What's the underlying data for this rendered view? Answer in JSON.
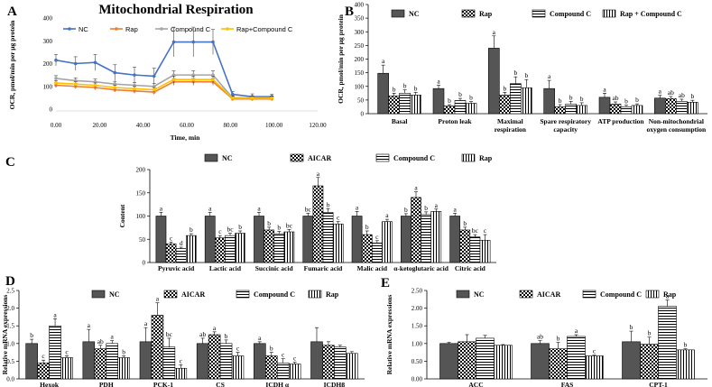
{
  "panels": {
    "A": {
      "label": "A",
      "chart_data": {
        "type": "line",
        "title": "Mitochondrial Respiration",
        "xlabel": "Time, min",
        "ylabel": "OCR, pmol/min per μg protein",
        "xlim": [
          0,
          120
        ],
        "ylim": [
          0,
          400
        ],
        "xticks": [
          "0.00",
          "20.00",
          "40.00",
          "60.00",
          "80.00",
          "100.00",
          "120.00"
        ],
        "yticks": [
          "0",
          "100",
          "200",
          "300",
          "400"
        ],
        "x": [
          0,
          9,
          18,
          27,
          36,
          45,
          54,
          63,
          72,
          81,
          90,
          99
        ],
        "series": [
          {
            "name": "NC",
            "color": "#4472C4",
            "values": [
              215,
              200,
              205,
              160,
              150,
              145,
              295,
              295,
              295,
              65,
              55,
              55
            ],
            "errors": [
              25,
              30,
              35,
              35,
              35,
              35,
              65,
              65,
              55,
              12,
              12,
              10
            ]
          },
          {
            "name": "Rap",
            "color": "#ED7D31",
            "values": [
              105,
              100,
              95,
              85,
              80,
              75,
              120,
              120,
              120,
              45,
              45,
              45
            ],
            "errors": [
              10,
              10,
              10,
              10,
              10,
              10,
              15,
              15,
              15,
              8,
              8,
              8
            ]
          },
          {
            "name": "Compound C",
            "color": "#A5A5A5",
            "values": [
              135,
              125,
              120,
              110,
              105,
              100,
              150,
              150,
              150,
              50,
              50,
              50
            ],
            "errors": [
              12,
              12,
              12,
              12,
              12,
              12,
              18,
              18,
              18,
              8,
              8,
              8
            ]
          },
          {
            "name": "Rap+Compound C",
            "color": "#FFC000",
            "values": [
              115,
              110,
              105,
              95,
              90,
              85,
              130,
              130,
              130,
              48,
              48,
              48
            ],
            "errors": [
              10,
              10,
              10,
              10,
              10,
              10,
              15,
              15,
              15,
              8,
              8,
              8
            ]
          }
        ]
      }
    },
    "B": {
      "label": "B",
      "chart_data": {
        "type": "bar",
        "ylabel": "OCR, pmol/min per μg protein",
        "ylim": [
          0,
          400
        ],
        "yticks": [
          "0",
          "50",
          "100",
          "150",
          "200",
          "250",
          "300",
          "350",
          "400"
        ],
        "categories": [
          "Basal",
          "Proton leak",
          "Maximal respiration",
          "Spare respiratory capacity",
          "ATP production",
          "Non-mitochondrial oxygen consumption"
        ],
        "category_lines": [
          [
            "Basal"
          ],
          [
            "Proton leak"
          ],
          [
            "Maximal",
            "respiration"
          ],
          [
            "Spare respiratory",
            "capacity"
          ],
          [
            "ATP production"
          ],
          [
            "Non-mitochondrial",
            "oxygen consumption"
          ]
        ],
        "series": [
          {
            "name": "NC",
            "pattern": "dark",
            "values": [
              148,
              92,
              240,
              92,
              60,
              57
            ],
            "errors": [
              30,
              12,
              45,
              30,
              15,
              10
            ],
            "letters": [
              "a",
              "a",
              "a",
              "a",
              "a",
              "a"
            ]
          },
          {
            "name": "Rap",
            "pattern": "check",
            "values": [
              65,
              28,
              68,
              25,
              35,
              55
            ],
            "errors": [
              10,
              5,
              10,
              8,
              8,
              8
            ],
            "letters": [
              "b",
              "b",
              "b",
              "b",
              "ab",
              "ab"
            ]
          },
          {
            "name": "Compound C",
            "pattern": "hstripe",
            "values": [
              75,
              48,
              110,
              35,
              25,
              45
            ],
            "errors": [
              12,
              8,
              25,
              10,
              6,
              8
            ],
            "letters": [
              "b",
              "b",
              "b",
              "b",
              "b",
              "ab"
            ]
          },
          {
            "name": "Rap + Compound C",
            "pattern": "vstripe",
            "values": [
              68,
              38,
              95,
              30,
              30,
              42
            ],
            "errors": [
              10,
              6,
              30,
              10,
              6,
              7
            ],
            "letters": [
              "b",
              "b",
              "b",
              "b",
              "b",
              "b"
            ]
          }
        ]
      }
    },
    "C": {
      "label": "C",
      "chart_data": {
        "type": "bar",
        "ylabel": "Content",
        "ylim": [
          0,
          200
        ],
        "yticks": [
          "0",
          "50",
          "100",
          "150",
          "200"
        ],
        "categories": [
          "Pyruvic acid",
          "Lactic acid",
          "Succinic acid",
          "Fumaric acid",
          "Malic acid",
          "α-ketoglutaric acid",
          "Citric acid"
        ],
        "series": [
          {
            "name": "NC",
            "pattern": "dark",
            "values": [
              100,
              100,
              100,
              100,
              100,
              100,
              100
            ],
            "errors": [
              8,
              8,
              8,
              6,
              10,
              5,
              6
            ],
            "letters": [
              "a",
              "a",
              "a",
              "bc",
              "a",
              "b",
              "a"
            ]
          },
          {
            "name": "AICAR",
            "pattern": "check",
            "values": [
              40,
              53,
              70,
              165,
              60,
              140,
              70
            ],
            "errors": [
              4,
              5,
              6,
              18,
              8,
              12,
              6
            ],
            "letters": [
              "c",
              "c",
              "b",
              "a",
              "b",
              "a",
              "b"
            ]
          },
          {
            "name": "Compound C",
            "pattern": "hstripe",
            "values": [
              30,
              58,
              62,
              108,
              42,
              103,
              55
            ],
            "errors": [
              3,
              5,
              5,
              8,
              5,
              6,
              5
            ],
            "letters": [
              "d",
              "bc",
              "b",
              "b",
              "c",
              "b",
              "bc"
            ]
          },
          {
            "name": "Rap",
            "pattern": "vstripe",
            "values": [
              58,
              63,
              66,
              83,
              88,
              110,
              48
            ],
            "errors": [
              4,
              5,
              5,
              5,
              5,
              5,
              12
            ],
            "letters": [
              "b",
              "b",
              "bc",
              "c",
              "a",
              "a",
              "c"
            ]
          }
        ]
      }
    },
    "D": {
      "label": "D",
      "chart_data": {
        "type": "bar",
        "ylabel": "Relative mRNA expressions",
        "ylim": [
          0,
          2.5
        ],
        "yticks": [
          "0.0",
          "0.5",
          "1.0",
          "1.5",
          "2.0",
          "2.5"
        ],
        "categories": [
          "Hexok",
          "PDH",
          "PCK-1",
          "CS",
          "ICDH α",
          "ICDHβ"
        ],
        "series": [
          {
            "name": "NC",
            "pattern": "dark",
            "values": [
              1.0,
              1.05,
              1.05,
              1.0,
              1.0,
              1.05
            ],
            "errors": [
              0.12,
              0.35,
              0.4,
              0.15,
              0.05,
              0.4
            ],
            "letters": [
              "b",
              "a",
              "a",
              "ab",
              "a",
              ""
            ]
          },
          {
            "name": "AICAR",
            "pattern": "check",
            "values": [
              0.45,
              0.85,
              1.8,
              1.25,
              0.65,
              0.95
            ],
            "errors": [
              0.08,
              0.1,
              0.35,
              0.08,
              0.1,
              0.1
            ],
            "letters": [
              "c",
              "ab",
              "a",
              "a",
              "b",
              ""
            ]
          },
          {
            "name": "Compound C",
            "pattern": "hstripe",
            "values": [
              1.5,
              1.0,
              0.9,
              1.0,
              0.45,
              0.9
            ],
            "errors": [
              0.2,
              0.08,
              0.25,
              0.1,
              0.12,
              0.05
            ],
            "letters": [
              "a",
              "a",
              "bc",
              "b",
              "c",
              ""
            ]
          },
          {
            "name": "Rap",
            "pattern": "vstripe",
            "values": [
              0.6,
              0.6,
              0.3,
              0.65,
              0.42,
              0.72
            ],
            "errors": [
              0.05,
              0.05,
              0.1,
              0.1,
              0.05,
              0.05
            ],
            "letters": [
              "c",
              "b",
              "c",
              "c",
              "c",
              ""
            ]
          }
        ]
      }
    },
    "E": {
      "label": "E",
      "chart_data": {
        "type": "bar",
        "ylabel": "Relative mRNA expressions",
        "ylim": [
          0,
          2.5
        ],
        "yticks": [
          "0.00",
          "0.50",
          "1.00",
          "1.50",
          "2.00",
          "2.50"
        ],
        "categories": [
          "ACC",
          "FAS",
          "CPT-1"
        ],
        "series": [
          {
            "name": "NC",
            "pattern": "dark",
            "values": [
              1.0,
              1.0,
              1.05
            ],
            "errors": [
              0.03,
              0.08,
              0.3
            ],
            "letters": [
              "",
              "ab",
              "b"
            ]
          },
          {
            "name": "AICAR",
            "pattern": "check",
            "values": [
              1.05,
              0.85,
              0.98
            ],
            "errors": [
              0.2,
              0.18,
              0.2
            ],
            "letters": [
              "",
              "b",
              "b"
            ]
          },
          {
            "name": "Compound C",
            "pattern": "hstripe",
            "values": [
              1.15,
              1.2,
              2.05
            ],
            "errors": [
              0.08,
              0.05,
              0.18
            ],
            "letters": [
              "",
              "a",
              "a"
            ]
          },
          {
            "name": "Rap",
            "pattern": "vstripe",
            "values": [
              0.95,
              0.65,
              0.82
            ],
            "errors": [
              0.02,
              0.02,
              0.03
            ],
            "letters": [
              "",
              "c",
              "b"
            ]
          }
        ]
      }
    }
  }
}
